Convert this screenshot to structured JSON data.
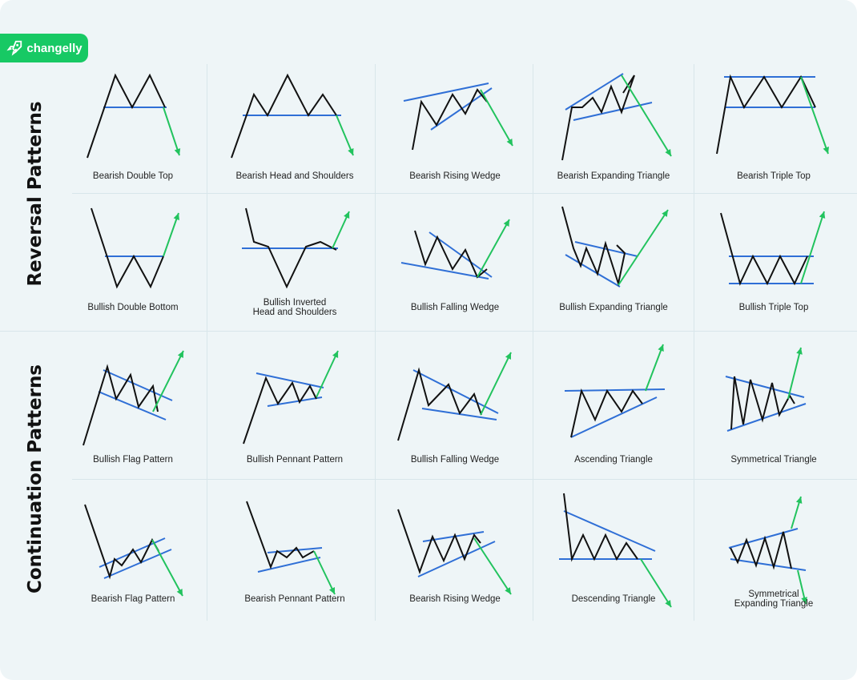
{
  "brand": {
    "name": "changelly",
    "color": "#17c964"
  },
  "sections": [
    {
      "id": "reversal",
      "label": "Reversal Patterns"
    },
    {
      "id": "continuation",
      "label": "Continuation Patterns"
    }
  ],
  "colors": {
    "price": "#111111",
    "level": "#2f6fd6",
    "breakout": "#22c35e"
  },
  "patterns": [
    {
      "label": "Bearish Double Top",
      "section": "reversal",
      "breakout": "down"
    },
    {
      "label": "Bearish Head and Shoulders",
      "section": "reversal",
      "breakout": "down"
    },
    {
      "label": "Bearish Rising Wedge",
      "section": "reversal",
      "breakout": "down"
    },
    {
      "label": "Bearish Expanding Triangle",
      "section": "reversal",
      "breakout": "down"
    },
    {
      "label": "Bearish Triple Top",
      "section": "reversal",
      "breakout": "down"
    },
    {
      "label": "Bullish Double Bottom",
      "section": "reversal",
      "breakout": "up"
    },
    {
      "label": "Bullish Inverted\nHead and Shoulders",
      "section": "reversal",
      "breakout": "up"
    },
    {
      "label": "Bullish Falling Wedge",
      "section": "reversal",
      "breakout": "up"
    },
    {
      "label": "Bullish Expanding Triangle",
      "section": "reversal",
      "breakout": "up"
    },
    {
      "label": "Bullish Triple Top",
      "section": "reversal",
      "breakout": "up"
    },
    {
      "label": "Bullish Flag Pattern",
      "section": "continuation",
      "breakout": "up"
    },
    {
      "label": "Bullish Pennant Pattern",
      "section": "continuation",
      "breakout": "up"
    },
    {
      "label": "Bullish Falling Wedge",
      "section": "continuation",
      "breakout": "up"
    },
    {
      "label": "Ascending Triangle",
      "section": "continuation",
      "breakout": "up"
    },
    {
      "label": "Symmetrical Triangle",
      "section": "continuation",
      "breakout": "both"
    },
    {
      "label": "Bearish Flag Pattern",
      "section": "continuation",
      "breakout": "down"
    },
    {
      "label": "Bearish Pennant Pattern",
      "section": "continuation",
      "breakout": "down"
    },
    {
      "label": "Bearish Rising Wedge",
      "section": "continuation",
      "breakout": "down"
    },
    {
      "label": "Descending Triangle",
      "section": "continuation",
      "breakout": "down"
    },
    {
      "label": "Symmetrical\nExpanding Triangle",
      "section": "continuation",
      "breakout": "both"
    }
  ]
}
